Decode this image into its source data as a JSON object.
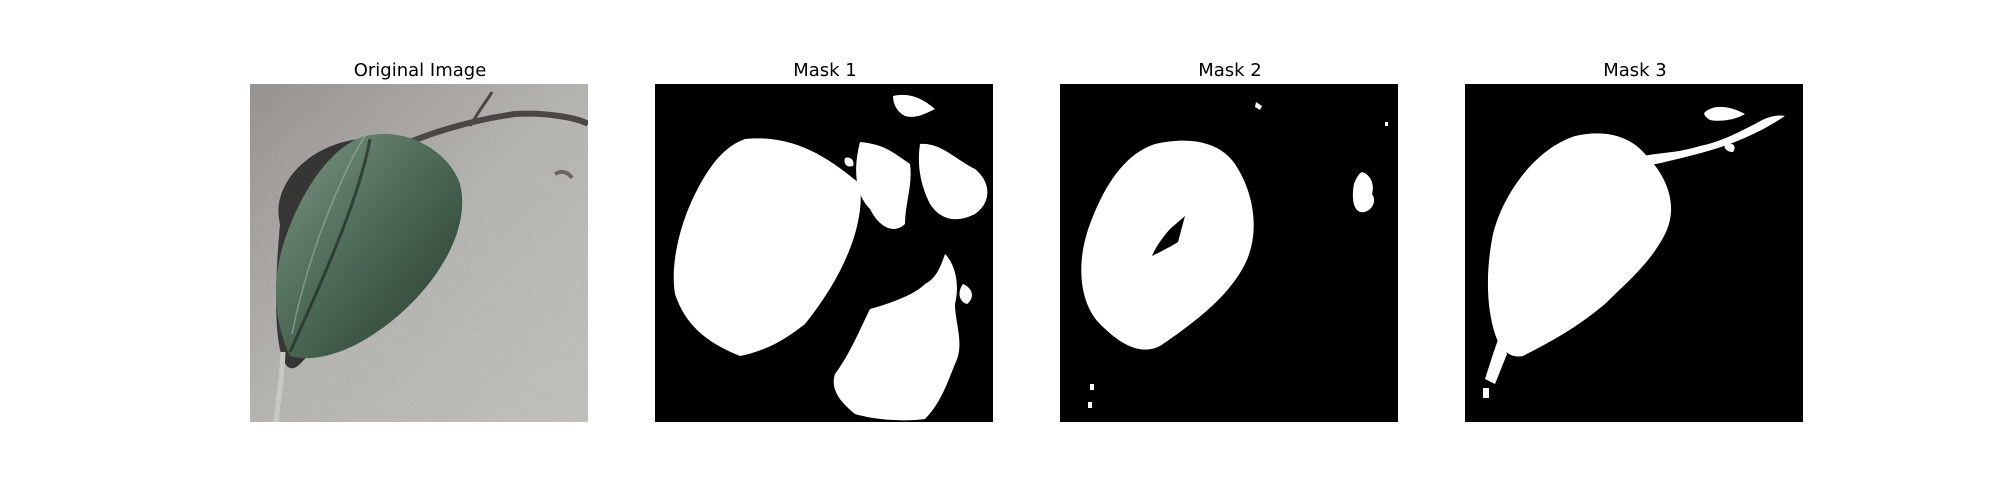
{
  "panels": [
    {
      "title": "Original Image",
      "image": "leaf-photo"
    },
    {
      "title": "Mask 1",
      "image": "binary-mask"
    },
    {
      "title": "Mask 2",
      "image": "binary-mask"
    },
    {
      "title": "Mask 3",
      "image": "binary-mask"
    }
  ],
  "colors": {
    "mask_background": "#000000",
    "mask_foreground": "#ffffff",
    "leaf": "#3f5a45",
    "ground": "#a9a7a3"
  }
}
